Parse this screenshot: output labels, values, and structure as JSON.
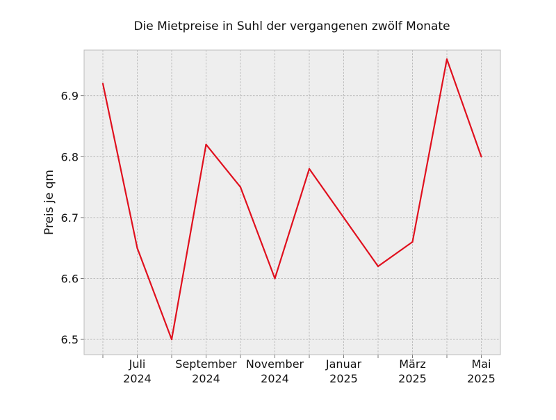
{
  "chart_data": {
    "type": "line",
    "title": "Die Mietpreise in Suhl der vergangenen zwölf Monate",
    "xlabel": "",
    "ylabel": "Preis je qm",
    "x": [
      "2024-06",
      "2024-07",
      "2024-08",
      "2024-09",
      "2024-10",
      "2024-11",
      "2024-12",
      "2025-01",
      "2025-02",
      "2025-03",
      "2025-04",
      "2025-05"
    ],
    "series": [
      {
        "values": [
          6.92,
          6.65,
          6.5,
          6.82,
          6.75,
          6.6,
          6.78,
          6.7,
          6.62,
          6.66,
          6.96,
          6.8
        ]
      }
    ],
    "ylim": [
      6.475,
      6.975
    ],
    "yticks": [
      6.5,
      6.6,
      6.7,
      6.8,
      6.9
    ],
    "ytick_labels": [
      "6.5",
      "6.6",
      "6.7",
      "6.8",
      "6.9"
    ],
    "xtick_labels": [
      {
        "month": "2024-07",
        "line1": "Juli",
        "line2": "2024"
      },
      {
        "month": "2024-09",
        "line1": "September",
        "line2": "2024"
      },
      {
        "month": "2024-11",
        "line1": "November",
        "line2": "2024"
      },
      {
        "month": "2025-01",
        "line1": "Januar",
        "line2": "2025"
      },
      {
        "month": "2025-03",
        "line1": "März",
        "line2": "2025"
      },
      {
        "month": "2025-05",
        "line1": "Mai",
        "line2": "2025"
      }
    ],
    "grid": true,
    "colors": {
      "line": "#e0101e",
      "plot_background": "#eeeeee",
      "grid": "#b0b0b0",
      "frame": "#bcbcbc"
    }
  }
}
